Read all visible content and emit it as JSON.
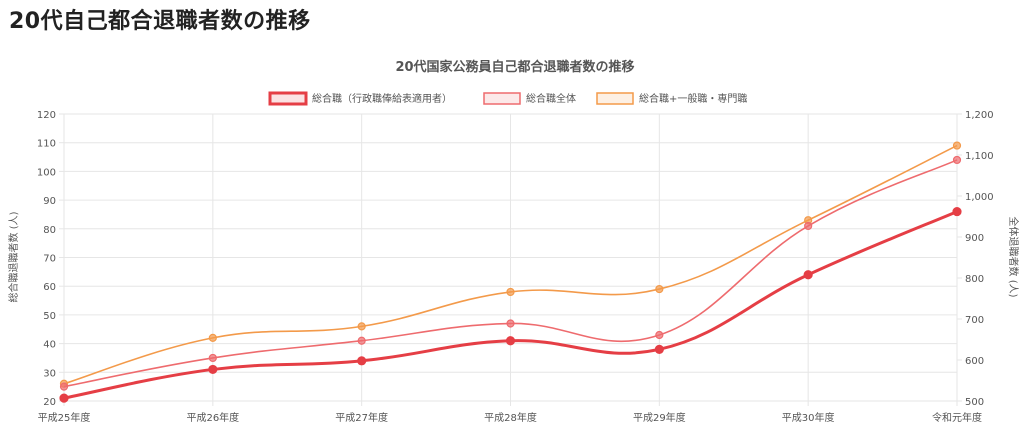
{
  "page": {
    "heading": "20代自己都合退職者数の推移"
  },
  "chart_data": {
    "type": "line",
    "title": "20代国家公務員自己都合退職者数の推移",
    "categories": [
      "平成25年度",
      "平成26年度",
      "平成27年度",
      "平成28年度",
      "平成29年度",
      "平成30年度",
      "令和元年度"
    ],
    "ylabel_left": "総合職退職者数 (人)",
    "ylabel_right": "全体退職者数 (人)",
    "ylim_left": [
      20,
      120
    ],
    "yticks_left": [
      "20",
      "30",
      "40",
      "50",
      "60",
      "70",
      "80",
      "90",
      "100",
      "110",
      "120"
    ],
    "ylim_right": [
      500,
      1200
    ],
    "yticks_right": [
      "500",
      "600",
      "700",
      "800",
      "900",
      "1,000",
      "1,100",
      "1,200"
    ],
    "grid": true,
    "legend_position": "top",
    "series": [
      {
        "name": "総合職（行政職俸給表適用者）",
        "axis": "left",
        "color": "#e53e45",
        "values": [
          21,
          31,
          34,
          41,
          38,
          64,
          86
        ]
      },
      {
        "name": "総合職全体",
        "axis": "left",
        "color": "#ee6b6e",
        "values": [
          25,
          35,
          41,
          47,
          43,
          81,
          104
        ]
      },
      {
        "name": "総合職+一般職・専門職",
        "axis": "left",
        "color": "#f39a4a",
        "values": [
          26,
          42,
          46,
          58,
          59,
          83,
          109
        ]
      }
    ]
  }
}
